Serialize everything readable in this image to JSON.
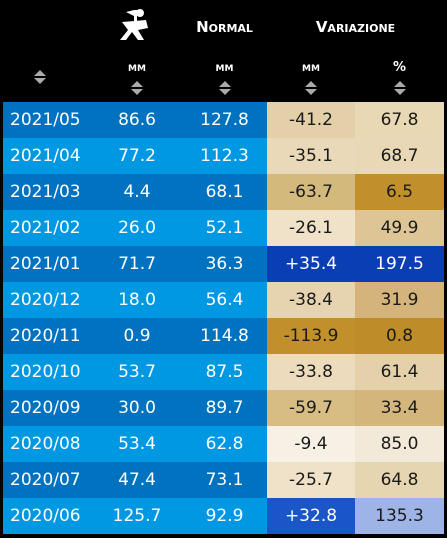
{
  "header": {
    "group_normal": "Normal",
    "group_variazione": "Variazione",
    "units": [
      "mm",
      "mm",
      "mm",
      "%"
    ]
  },
  "table": {
    "rows": [
      {
        "month": "2021/05",
        "rain": "86.6",
        "normal": "127.8",
        "var_mm": "-41.2",
        "var_pct": "67.8",
        "var_mm_bg": "#e3d0a8",
        "var_pct_bg": "#e8d8b4"
      },
      {
        "month": "2021/04",
        "rain": "77.2",
        "normal": "112.3",
        "var_mm": "-35.1",
        "var_pct": "68.7",
        "var_mm_bg": "#ead9b8",
        "var_pct_bg": "#e8d8b5"
      },
      {
        "month": "2021/03",
        "rain": "4.4",
        "normal": "68.1",
        "var_mm": "-63.7",
        "var_pct": "6.5",
        "var_mm_bg": "#d4b97d",
        "var_pct_bg": "#c1902b"
      },
      {
        "month": "2021/02",
        "rain": "26.0",
        "normal": "52.1",
        "var_mm": "-26.1",
        "var_pct": "49.9",
        "var_mm_bg": "#efe2c8",
        "var_pct_bg": "#ddc595"
      },
      {
        "month": "2021/01",
        "rain": "71.7",
        "normal": "36.3",
        "var_mm": "+35.4",
        "var_pct": "197.5",
        "var_mm_bg": "#0a3fb4",
        "var_pct_bg": "#0a3fb4"
      },
      {
        "month": "2020/12",
        "rain": "18.0",
        "normal": "56.4",
        "var_mm": "-38.4",
        "var_pct": "31.9",
        "var_mm_bg": "#e6d4b0",
        "var_pct_bg": "#d4b47a"
      },
      {
        "month": "2020/11",
        "rain": "0.9",
        "normal": "114.8",
        "var_mm": "-113.9",
        "var_pct": "0.8",
        "var_mm_bg": "#c1902b",
        "var_pct_bg": "#bf8d28"
      },
      {
        "month": "2020/10",
        "rain": "53.7",
        "normal": "87.5",
        "var_mm": "-33.8",
        "var_pct": "61.4",
        "var_mm_bg": "#ecdcbd",
        "var_pct_bg": "#e4d1aa"
      },
      {
        "month": "2020/09",
        "rain": "30.0",
        "normal": "89.7",
        "var_mm": "-59.7",
        "var_pct": "33.4",
        "var_mm_bg": "#d7bd84",
        "var_pct_bg": "#d4b67c"
      },
      {
        "month": "2020/08",
        "rain": "53.4",
        "normal": "62.8",
        "var_mm": "-9.4",
        "var_pct": "85.0",
        "var_mm_bg": "#f7f0e4",
        "var_pct_bg": "#f2e9d8"
      },
      {
        "month": "2020/07",
        "rain": "47.4",
        "normal": "73.1",
        "var_mm": "-25.7",
        "var_pct": "64.8",
        "var_mm_bg": "#efe2c8",
        "var_pct_bg": "#e6d5b1"
      },
      {
        "month": "2020/06",
        "rain": "125.7",
        "normal": "92.9",
        "var_mm": "+32.8",
        "var_pct": "135.3",
        "var_mm_bg": "#1a56c8",
        "var_pct_bg": "#9fb4e6"
      }
    ]
  }
}
